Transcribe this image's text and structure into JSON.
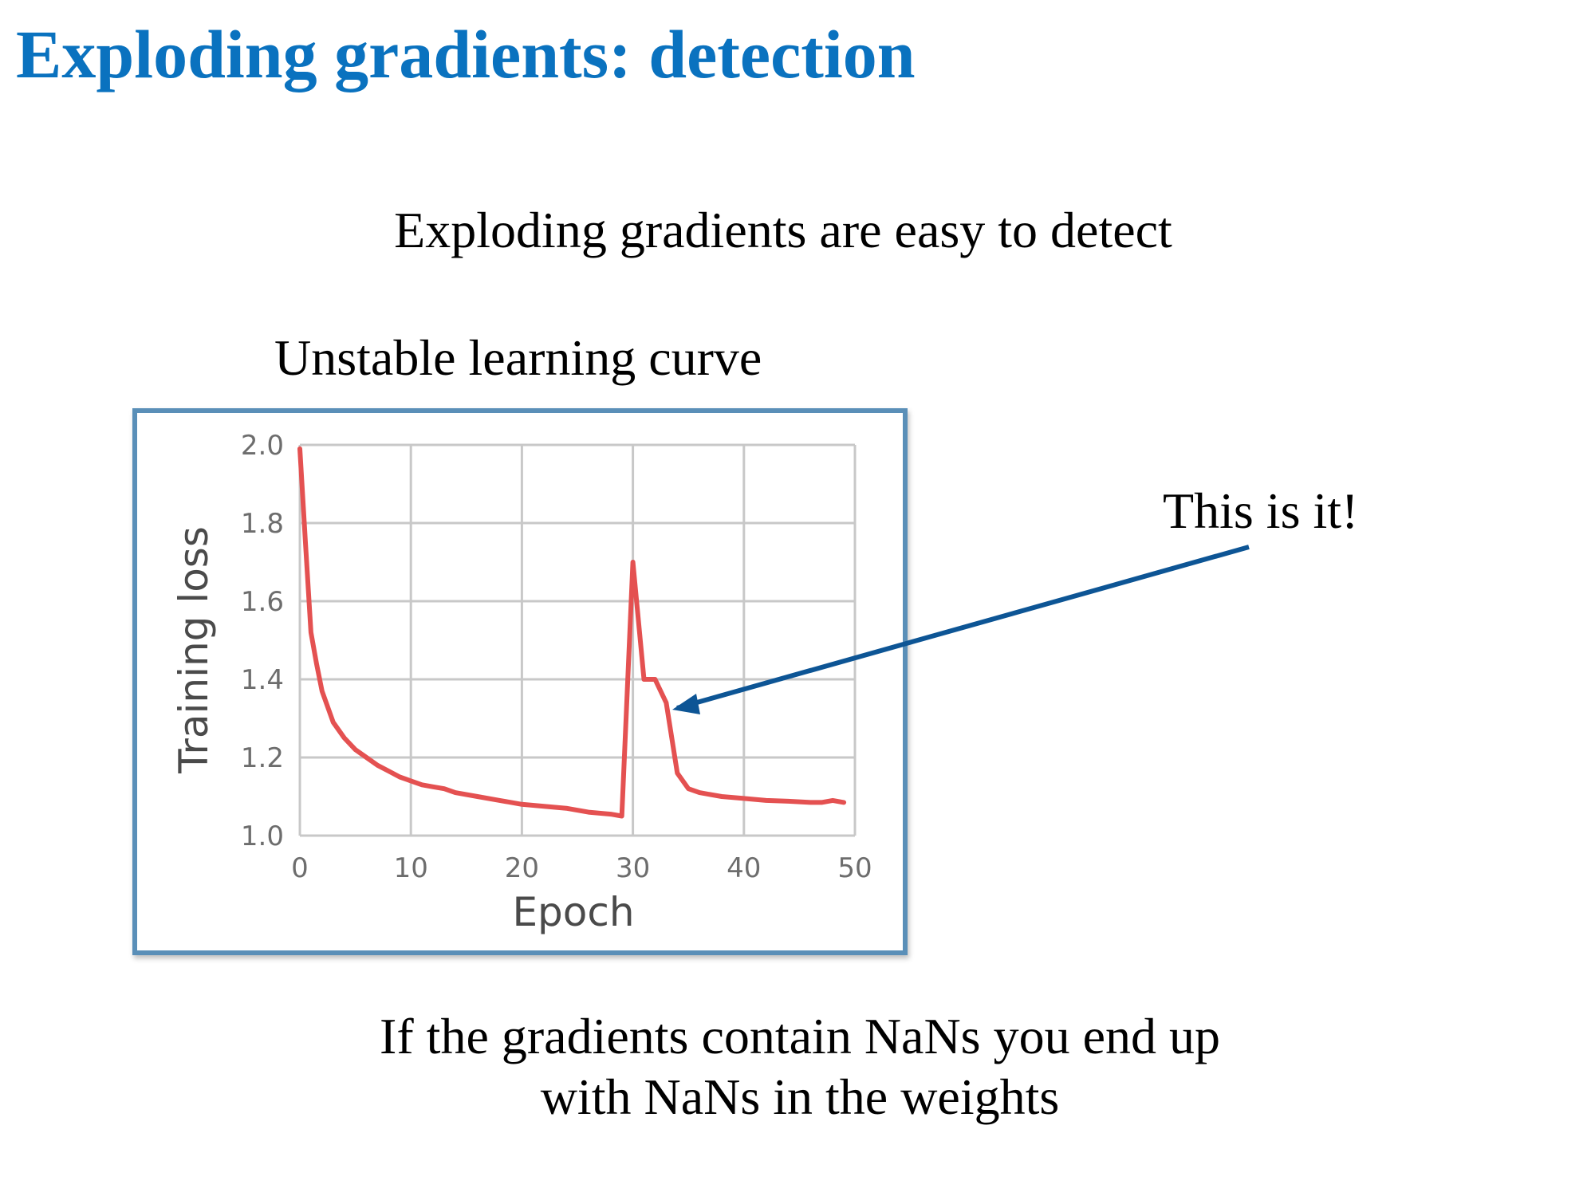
{
  "slide": {
    "title": "Exploding gradients: detection",
    "subtitle": "Exploding gradients are easy to detect",
    "chart_caption": "Unstable learning curve",
    "callout": "This is it!",
    "footer_line1": "If the gradients contain NaNs you end up",
    "footer_line2": "with NaNs in the weights"
  },
  "colors": {
    "title": "#0a72bf",
    "frame_border": "#5a8fb8",
    "series_line": "#e45151",
    "arrow": "#0d5595",
    "grid": "#c8c8c8"
  },
  "chart_data": {
    "type": "line",
    "title": "Unstable learning curve",
    "xlabel": "Epoch",
    "ylabel": "Training loss",
    "xlim": [
      0,
      50
    ],
    "ylim": [
      1.0,
      2.0
    ],
    "xticks": [
      0,
      10,
      20,
      30,
      40,
      50
    ],
    "yticks": [
      1.0,
      1.2,
      1.4,
      1.6,
      1.8,
      2.0
    ],
    "grid": true,
    "series": [
      {
        "name": "Training loss",
        "x": [
          0,
          0.5,
          1,
          1.5,
          2,
          3,
          4,
          5,
          6,
          7,
          8,
          9,
          10,
          11,
          12,
          13,
          14,
          16,
          18,
          20,
          22,
          24,
          26,
          28,
          29,
          30,
          31,
          32,
          33,
          34,
          35,
          36,
          38,
          40,
          42,
          44,
          46,
          47,
          48,
          49
        ],
        "y": [
          1.99,
          1.75,
          1.52,
          1.44,
          1.37,
          1.29,
          1.25,
          1.22,
          1.2,
          1.18,
          1.165,
          1.15,
          1.14,
          1.13,
          1.125,
          1.12,
          1.11,
          1.1,
          1.09,
          1.08,
          1.075,
          1.07,
          1.06,
          1.055,
          1.05,
          1.7,
          1.4,
          1.4,
          1.34,
          1.16,
          1.12,
          1.11,
          1.1,
          1.095,
          1.09,
          1.088,
          1.085,
          1.085,
          1.09,
          1.085
        ]
      }
    ],
    "annotation": {
      "text": "This is it!",
      "points_to": {
        "x": 33.5,
        "y": 1.34
      }
    }
  }
}
